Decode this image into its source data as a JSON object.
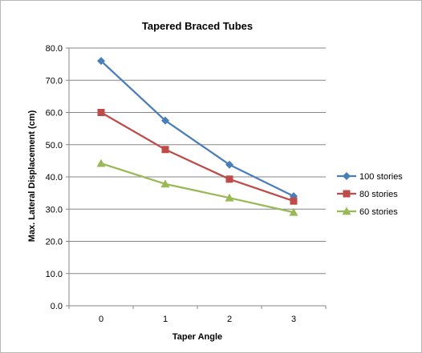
{
  "chart_data": {
    "type": "line",
    "title": "Tapered Braced Tubes",
    "xlabel": "Taper Angle",
    "ylabel": "Max. Lateral Displacement (cm)",
    "categories": [
      "0",
      "1",
      "2",
      "3"
    ],
    "ylim": [
      0,
      80
    ],
    "y_ticks": [
      "0.0",
      "10.0",
      "20.0",
      "30.0",
      "40.0",
      "50.0",
      "60.0",
      "70.0",
      "80.0"
    ],
    "grid": true,
    "legend_position": "right",
    "series": [
      {
        "name": "100 stories",
        "values": [
          76.0,
          57.5,
          43.8,
          34.0
        ],
        "color": "#4a7ebb",
        "marker": "diamond"
      },
      {
        "name": "80 stories",
        "values": [
          60.0,
          48.5,
          39.3,
          32.5
        ],
        "color": "#be4b48",
        "marker": "square"
      },
      {
        "name": "60 stories",
        "values": [
          44.2,
          37.8,
          33.5,
          29.0
        ],
        "color": "#98b954",
        "marker": "triangle"
      }
    ]
  }
}
